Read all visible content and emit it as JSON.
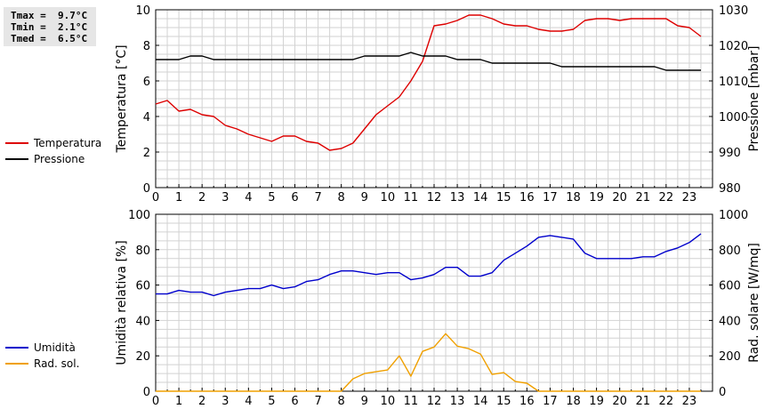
{
  "stats": {
    "tmax": "Tmax =  9.7°C",
    "tmin": "Tmin =  2.1°C",
    "tmed": "Tmed =  6.5°C"
  },
  "colors": {
    "temperature": "#dd0000",
    "pressure": "#000000",
    "humidity": "#0000cc",
    "radiation": "#f0a000",
    "grid": "#d2d2d2"
  },
  "chart_data": [
    {
      "type": "line",
      "title": "",
      "xlabel": "",
      "ylabel": "Temperatura [°C]",
      "ylabel_right": "Pressione [mbar]",
      "xlim": [
        0,
        24
      ],
      "x_ticks": [
        0,
        1,
        2,
        3,
        4,
        5,
        6,
        7,
        8,
        9,
        10,
        11,
        12,
        13,
        14,
        15,
        16,
        17,
        18,
        19,
        20,
        21,
        22,
        23
      ],
      "ylim": [
        0,
        10
      ],
      "y_ticks": [
        0,
        2,
        4,
        6,
        8,
        10
      ],
      "ylim_right": [
        980,
        1030
      ],
      "y_ticks_right": [
        980,
        990,
        1000,
        1010,
        1020,
        1030
      ],
      "grid": true,
      "legend_position": "left",
      "series": [
        {
          "name": "Temperatura",
          "axis": "left",
          "color": "#dd0000",
          "x": [
            0,
            0.5,
            1,
            1.5,
            2,
            2.5,
            3,
            3.5,
            4,
            4.5,
            5,
            5.5,
            6,
            6.5,
            7,
            7.5,
            8,
            8.5,
            9,
            9.5,
            10,
            10.5,
            11,
            11.5,
            12,
            12.5,
            13,
            13.5,
            14,
            14.5,
            15,
            15.5,
            16,
            16.5,
            17,
            17.5,
            18,
            18.5,
            19,
            19.5,
            20,
            20.5,
            21,
            21.5,
            22,
            22.5,
            23,
            23.5
          ],
          "values": [
            4.7,
            4.9,
            4.3,
            4.4,
            4.1,
            4.0,
            3.5,
            3.3,
            3.0,
            2.8,
            2.6,
            2.9,
            2.9,
            2.6,
            2.5,
            2.1,
            2.2,
            2.5,
            3.3,
            4.1,
            4.6,
            5.1,
            6.0,
            7.1,
            9.1,
            9.2,
            9.4,
            9.7,
            9.7,
            9.5,
            9.2,
            9.1,
            9.1,
            8.9,
            8.8,
            8.8,
            8.9,
            9.4,
            9.5,
            9.5,
            9.4,
            9.5,
            9.5,
            9.5,
            9.5,
            9.1,
            9.0,
            8.5
          ]
        },
        {
          "name": "Pressione",
          "axis": "right",
          "color": "#000000",
          "x": [
            0,
            0.5,
            1,
            1.5,
            2,
            2.5,
            3,
            3.5,
            4,
            4.5,
            5,
            5.5,
            6,
            6.5,
            7,
            7.5,
            8,
            8.5,
            9,
            9.5,
            10,
            10.5,
            11,
            11.5,
            12,
            12.5,
            13,
            13.5,
            14,
            14.5,
            15,
            15.5,
            16,
            16.5,
            17,
            17.5,
            18,
            18.5,
            19,
            19.5,
            20,
            20.5,
            21,
            21.5,
            22,
            22.5,
            23,
            23.5
          ],
          "values": [
            1016,
            1016,
            1016,
            1017,
            1017,
            1016,
            1016,
            1016,
            1016,
            1016,
            1016,
            1016,
            1016,
            1016,
            1016,
            1016,
            1016,
            1016,
            1017,
            1017,
            1017,
            1017,
            1018,
            1017,
            1017,
            1017,
            1016,
            1016,
            1016,
            1015,
            1015,
            1015,
            1015,
            1015,
            1015,
            1014,
            1014,
            1014,
            1014,
            1014,
            1014,
            1014,
            1014,
            1014,
            1013,
            1013,
            1013,
            1013
          ]
        }
      ]
    },
    {
      "type": "line",
      "title": "",
      "xlabel": "",
      "ylabel": "Umidità relativa [%]",
      "ylabel_right": "Rad. solare [W/mq]",
      "xlim": [
        0,
        24
      ],
      "x_ticks": [
        0,
        1,
        2,
        3,
        4,
        5,
        6,
        7,
        8,
        9,
        10,
        11,
        12,
        13,
        14,
        15,
        16,
        17,
        18,
        19,
        20,
        21,
        22,
        23
      ],
      "ylim": [
        0,
        100
      ],
      "y_ticks": [
        0,
        20,
        40,
        60,
        80,
        100
      ],
      "ylim_right": [
        0,
        1000
      ],
      "y_ticks_right": [
        0,
        200,
        400,
        600,
        800,
        1000
      ],
      "grid": true,
      "legend_position": "left",
      "series": [
        {
          "name": "Umidità",
          "axis": "left",
          "color": "#0000cc",
          "x": [
            0,
            0.5,
            1,
            1.5,
            2,
            2.5,
            3,
            3.5,
            4,
            4.5,
            5,
            5.5,
            6,
            6.5,
            7,
            7.5,
            8,
            8.5,
            9,
            9.5,
            10,
            10.5,
            11,
            11.5,
            12,
            12.5,
            13,
            13.5,
            14,
            14.5,
            15,
            15.5,
            16,
            16.5,
            17,
            17.5,
            18,
            18.5,
            19,
            19.5,
            20,
            20.5,
            21,
            21.5,
            22,
            22.5,
            23,
            23.5
          ],
          "values": [
            55,
            55,
            57,
            56,
            56,
            54,
            56,
            57,
            58,
            58,
            60,
            58,
            59,
            62,
            63,
            66,
            68,
            68,
            67,
            66,
            67,
            67,
            63,
            64,
            66,
            70,
            70,
            65,
            65,
            67,
            74,
            78,
            82,
            87,
            88,
            87,
            86,
            78,
            75,
            75,
            75,
            75,
            76,
            76,
            79,
            81,
            84,
            89
          ]
        },
        {
          "name": "Rad. sol.",
          "axis": "right",
          "color": "#f0a000",
          "x": [
            0,
            0.5,
            1,
            1.5,
            2,
            2.5,
            3,
            3.5,
            4,
            4.5,
            5,
            5.5,
            6,
            6.5,
            7,
            7.5,
            8,
            8.5,
            9,
            9.5,
            10,
            10.5,
            11,
            11.5,
            12,
            12.5,
            13,
            13.5,
            14,
            14.5,
            15,
            15.5,
            16,
            16.5,
            17,
            17.5,
            18,
            18.5,
            19,
            19.5,
            20,
            20.5,
            21,
            21.5,
            22,
            22.5,
            23,
            23.5
          ],
          "values": [
            0,
            0,
            0,
            0,
            0,
            0,
            0,
            0,
            0,
            0,
            0,
            0,
            0,
            0,
            0,
            0,
            0,
            70,
            100,
            110,
            120,
            200,
            85,
            225,
            250,
            325,
            255,
            240,
            210,
            95,
            105,
            55,
            45,
            0,
            0,
            0,
            0,
            0,
            0,
            0,
            0,
            0,
            0,
            0,
            0,
            0,
            0,
            0
          ]
        }
      ]
    }
  ]
}
